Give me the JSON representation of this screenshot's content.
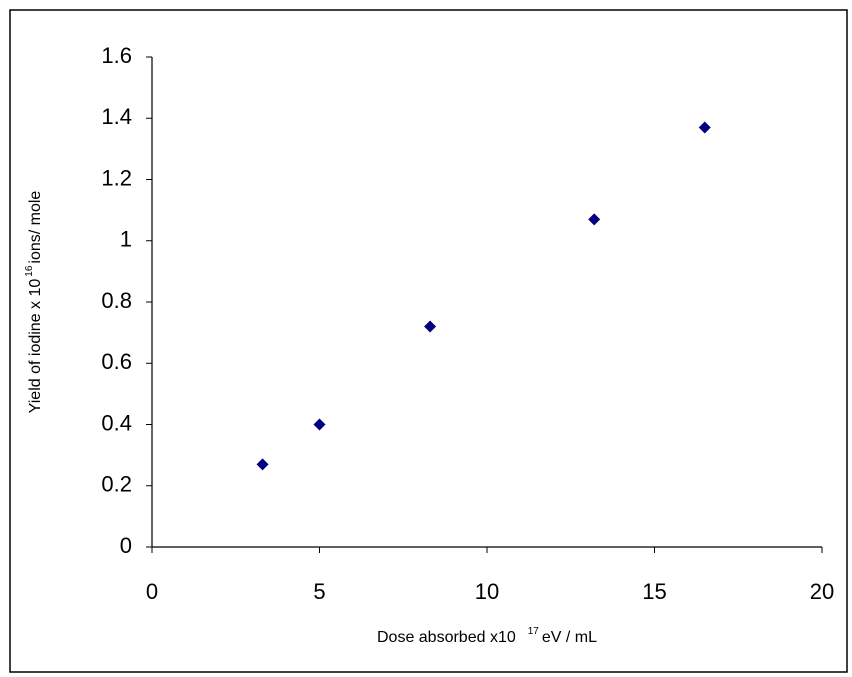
{
  "chart_data": {
    "type": "scatter",
    "x_label": {
      "text": "Dose absorbed x10",
      "superscript": "17",
      "suffix": "eV / mL"
    },
    "y_label": {
      "text": "Yield of iodine x 10",
      "superscript": "16",
      "suffix": "ions/ mole"
    },
    "series": [
      {
        "color": "#000080",
        "x": [
          3.3,
          5,
          8.3,
          13.2,
          16.5
        ],
        "values": [
          0.27,
          0.4,
          0.72,
          1.07,
          1.37
        ]
      }
    ],
    "xlim": [
      0,
      20
    ],
    "xticks": [
      0,
      5,
      10,
      15,
      20
    ],
    "ylim": [
      0,
      1.6
    ],
    "yticks": [
      0,
      0.2,
      0.4,
      0.6,
      0.8,
      1,
      1.2,
      1.4,
      1.6
    ],
    "grid": false
  }
}
